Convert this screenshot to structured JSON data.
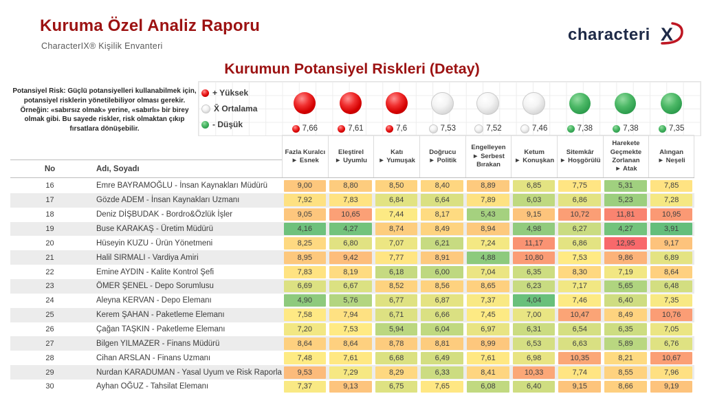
{
  "header": {
    "title": "Kuruma Özel Analiz Raporu",
    "subtitle": "CharacterIX®  Kişilik Envanteri",
    "logo_text": "characteri",
    "logo_x": "X"
  },
  "page_title": "Kurumun Potansiyel Riskleri (Detay)",
  "description": "Potansiyel Risk: Güçlü potansiyelleri kullanabilmek için, potansiyel risklerin yönetilebiliyor olması gerekir. Örneğin: «sabırsız olmak» yerine, «sabırlı» bir birey olmak gibi. Bu sayede riskler, risk olmaktan çıkıp fırsatlara dönüşebilir.",
  "legend": [
    {
      "color": "red",
      "label": "+ Yüksek"
    },
    {
      "color": "white",
      "label": "X̄ Ortalama"
    },
    {
      "color": "green",
      "label": "- Düşük"
    }
  ],
  "table": {
    "no_header": "No",
    "name_header": "Adı, Soyadı",
    "columns": [
      {
        "lines": [
          "Fazla Kuralcı",
          "► Esnek"
        ],
        "avg": "7,66",
        "ball": "red"
      },
      {
        "lines": [
          "Eleştirel",
          "► Uyumlu"
        ],
        "avg": "7,61",
        "ball": "red"
      },
      {
        "lines": [
          "Katı",
          "► Yumuşak"
        ],
        "avg": "7,6",
        "ball": "red"
      },
      {
        "lines": [
          "Doğrucu",
          "► Politik"
        ],
        "avg": "7,53",
        "ball": "white"
      },
      {
        "lines": [
          "Engelleyen",
          "► Serbest",
          "Bırakan"
        ],
        "avg": "7,52",
        "ball": "white"
      },
      {
        "lines": [
          "Ketum",
          "► Konuşkan"
        ],
        "avg": "7,46",
        "ball": "white"
      },
      {
        "lines": [
          "Sitemkâr",
          "► Hoşgörülü"
        ],
        "avg": "7,38",
        "ball": "green"
      },
      {
        "lines": [
          "Harekete",
          "Geçmekte",
          "Zorlanan",
          "► Atak"
        ],
        "avg": "7,38",
        "ball": "green"
      },
      {
        "lines": [
          "Alıngan",
          "► Neşeli"
        ],
        "avg": "7,35",
        "ball": "green"
      }
    ],
    "rows": [
      {
        "no": 16,
        "name": "Emre BAYRAMOĞLU - İnsan Kaynakları Müdürü",
        "values": [
          "9,00",
          "8,80",
          "8,50",
          "8,40",
          "8,89",
          "6,85",
          "7,75",
          "5,31",
          "7,85"
        ]
      },
      {
        "no": 17,
        "name": "Gözde ADEM - İnsan Kaynakları Uzmanı",
        "values": [
          "7,92",
          "7,83",
          "6,84",
          "6,64",
          "7,89",
          "6,03",
          "6,86",
          "5,23",
          "7,28"
        ]
      },
      {
        "no": 18,
        "name": "Deniz DİŞBUDAK - Bordro&Özlük İşler",
        "values": [
          "9,05",
          "10,65",
          "7,44",
          "8,17",
          "5,43",
          "9,15",
          "10,72",
          "11,81",
          "10,95"
        ]
      },
      {
        "no": 19,
        "name": "Buse KARAKAŞ - Üretim Müdürü",
        "values": [
          "4,16",
          "4,27",
          "8,74",
          "8,49",
          "8,94",
          "4,98",
          "6,27",
          "4,27",
          "3,91"
        ]
      },
      {
        "no": 20,
        "name": "Hüseyin KUZU - Ürün Yönetmeni",
        "values": [
          "8,25",
          "6,80",
          "7,07",
          "6,21",
          "7,24",
          "11,17",
          "6,86",
          "12,95",
          "9,17"
        ]
      },
      {
        "no": 21,
        "name": "Halil SIRMALI - Vardiya Amiri",
        "values": [
          "8,95",
          "9,42",
          "7,77",
          "8,91",
          "4,88",
          "10,80",
          "7,53",
          "9,86",
          "6,89"
        ]
      },
      {
        "no": 22,
        "name": "Emine AYDIN - Kalite Kontrol Şefi",
        "values": [
          "7,83",
          "8,19",
          "6,18",
          "6,00",
          "7,04",
          "6,35",
          "8,30",
          "7,19",
          "8,64"
        ]
      },
      {
        "no": 23,
        "name": "ÖMER ŞENEL - Depo Sorumlusu",
        "values": [
          "6,69",
          "6,67",
          "8,52",
          "8,56",
          "8,65",
          "6,23",
          "7,17",
          "5,65",
          "6,48"
        ]
      },
      {
        "no": 24,
        "name": "Aleyna KERVAN - Depo Elemanı",
        "values": [
          "4,90",
          "5,76",
          "6,77",
          "6,87",
          "7,37",
          "4,04",
          "7,46",
          "6,40",
          "7,35"
        ]
      },
      {
        "no": 25,
        "name": "Kerem ŞAHAN - Paketleme Elemanı",
        "values": [
          "7,58",
          "7,94",
          "6,71",
          "6,66",
          "7,45",
          "7,00",
          "10,47",
          "8,49",
          "10,76"
        ]
      },
      {
        "no": 26,
        "name": "Çağan TAŞKIN - Paketleme Elemanı",
        "values": [
          "7,20",
          "7,53",
          "5,94",
          "6,04",
          "6,97",
          "6,31",
          "6,54",
          "6,35",
          "7,05"
        ]
      },
      {
        "no": 27,
        "name": "Bilgen YILMAZER - Finans Müdürü",
        "values": [
          "8,64",
          "8,64",
          "8,78",
          "8,81",
          "8,99",
          "6,53",
          "6,63",
          "5,89",
          "6,76"
        ]
      },
      {
        "no": 28,
        "name": "Cihan ARSLAN - Finans Uzmanı",
        "values": [
          "7,48",
          "7,61",
          "6,68",
          "6,49",
          "7,61",
          "6,98",
          "10,35",
          "8,21",
          "10,67"
        ]
      },
      {
        "no": 29,
        "name": "Nurdan KARADUMAN - Yasal Uyum ve Risk Raporlama",
        "values": [
          "9,53",
          "7,29",
          "8,29",
          "6,33",
          "8,41",
          "10,33",
          "7,74",
          "8,55",
          "7,96"
        ]
      },
      {
        "no": 30,
        "name": "Ayhan OĞUZ - Tahsilat Elemanı",
        "values": [
          "7,37",
          "9,13",
          "6,75",
          "7,65",
          "6,08",
          "6,40",
          "9,15",
          "8,66",
          "9,19"
        ]
      }
    ]
  },
  "color_scale": {
    "min": 3.91,
    "mid": 7.5,
    "max": 12.95,
    "min_color": "#63BE7B",
    "mid_color": "#FFEB84",
    "max_color": "#F8696B"
  },
  "brand_colors": {
    "title_red": "#9C1212",
    "logo_navy": "#1E2A47",
    "logo_red": "#BE1622"
  }
}
